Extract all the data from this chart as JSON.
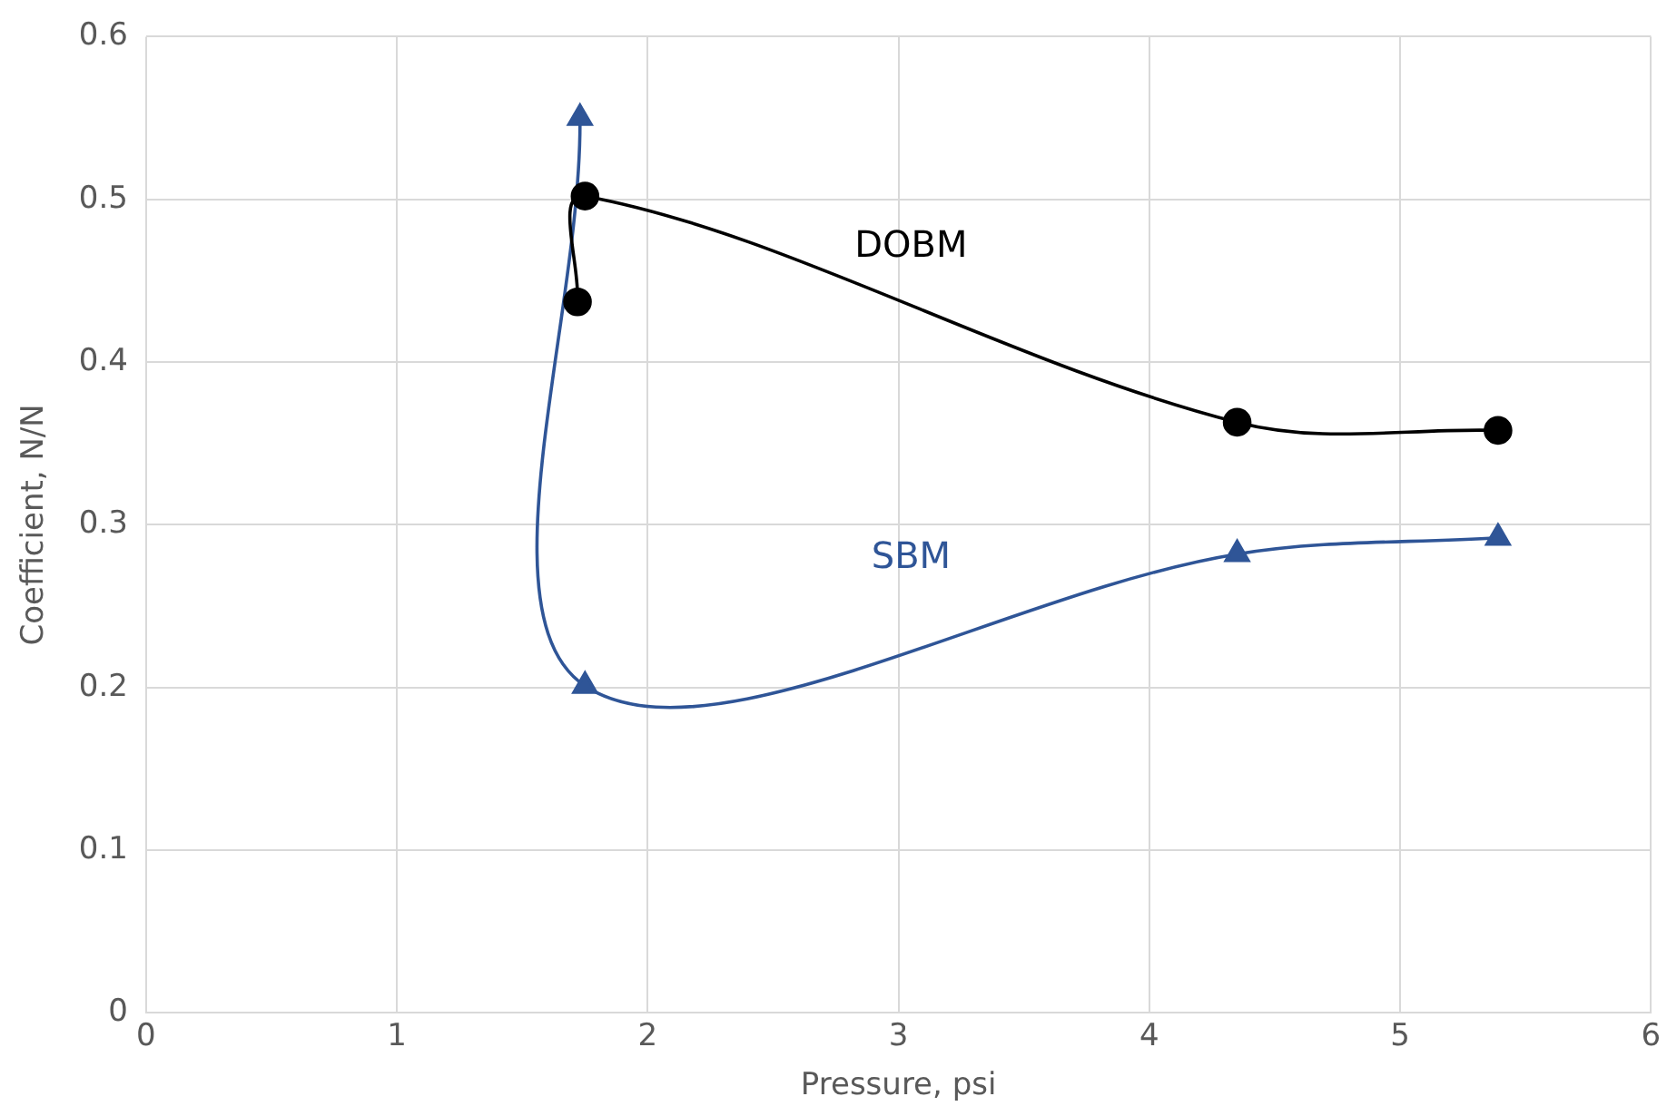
{
  "chart_data": {
    "type": "line",
    "xlabel": "Pressure, psi",
    "ylabel": "Coefficient, N/N",
    "xlim": [
      0,
      6
    ],
    "xticks": [
      0,
      1,
      2,
      3,
      4,
      5,
      6
    ],
    "ylim": [
      0,
      0.6
    ],
    "yticks": [
      0,
      0.1,
      0.2,
      0.3,
      0.4,
      0.5,
      0.6
    ],
    "grid": true,
    "legend": false,
    "line_style": "solid",
    "series": [
      {
        "name": "DOBM",
        "color": "#000000",
        "marker": "circle",
        "x": [
          1.72,
          1.75,
          4.35,
          5.39
        ],
        "values": [
          0.437,
          0.502,
          0.363,
          0.358
        ]
      },
      {
        "name": "SBM",
        "color": "#2f5597",
        "marker": "triangle",
        "x": [
          1.73,
          1.75,
          4.35,
          5.39
        ],
        "values": [
          0.55,
          0.201,
          0.282,
          0.292
        ]
      }
    ]
  }
}
